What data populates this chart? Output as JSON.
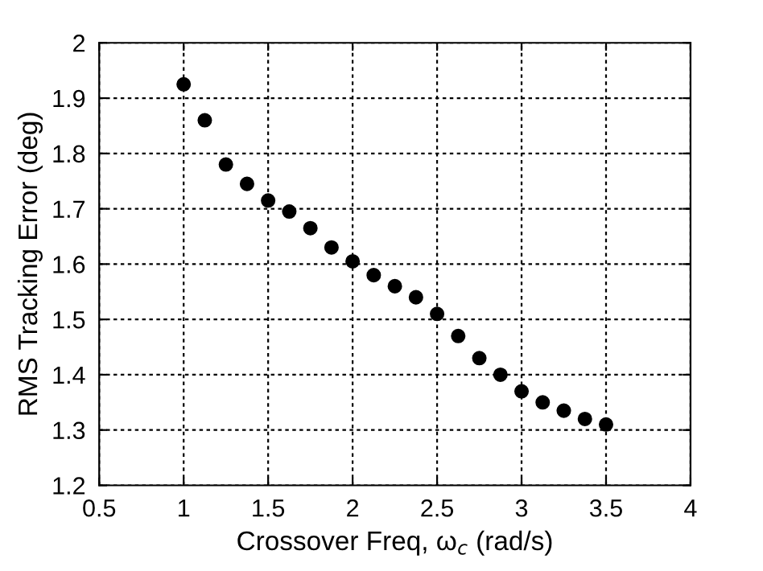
{
  "chart_data": {
    "type": "scatter",
    "xlabel": "Crossover Freq, ω$_{c}$ (rad/s)",
    "ylabel": "RMS Tracking Error (deg)",
    "x": [
      1,
      1.125,
      1.25,
      1.375,
      1.5,
      1.625,
      1.75,
      1.875,
      2,
      2.125,
      2.25,
      2.375,
      2.5,
      2.625,
      2.75,
      2.875,
      3,
      3.125,
      3.25,
      3.375,
      3.5
    ],
    "series": [
      {
        "color": "#000000",
        "values": [
          1.925,
          1.86,
          1.78,
          1.745,
          1.715,
          1.695,
          1.665,
          1.63,
          1.605,
          1.58,
          1.56,
          1.54,
          1.51,
          1.47,
          1.43,
          1.4,
          1.37,
          1.35,
          1.335,
          1.32,
          1.31
        ]
      }
    ],
    "xlim": [
      0.5,
      4
    ],
    "ylim": [
      1.2,
      2
    ],
    "xticks": [
      0.5,
      1,
      1.5,
      2,
      2.5,
      3,
      3.5,
      4
    ],
    "yticks": [
      1.2,
      1.3,
      1.4,
      1.5,
      1.6,
      1.7,
      1.8,
      1.9,
      2
    ],
    "grid": true,
    "marker": "circle"
  }
}
